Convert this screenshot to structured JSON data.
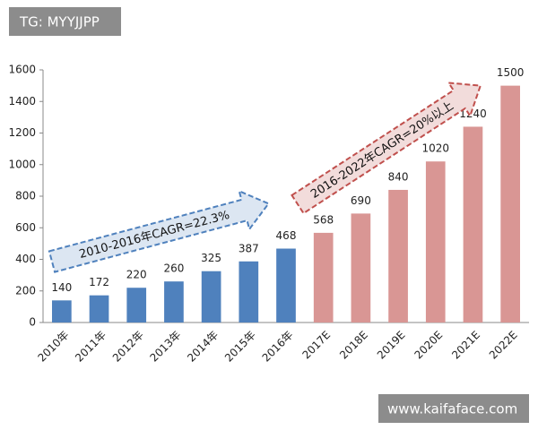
{
  "chart_data": {
    "type": "bar",
    "categories": [
      "2010年",
      "2011年",
      "2012年",
      "2013年",
      "2014年",
      "2015年",
      "2016年",
      "2017E",
      "2018E",
      "2019E",
      "2020E",
      "2021E",
      "2022E"
    ],
    "values": [
      140,
      172,
      220,
      260,
      325,
      387,
      468,
      568,
      690,
      840,
      1020,
      1240,
      1500
    ],
    "colors": [
      "#4f81bd",
      "#4f81bd",
      "#4f81bd",
      "#4f81bd",
      "#4f81bd",
      "#4f81bd",
      "#4f81bd",
      "#d99694",
      "#d99694",
      "#d99694",
      "#d99694",
      "#d99694",
      "#d99694"
    ],
    "ylim": [
      0,
      1600
    ],
    "yticks": [
      0,
      200,
      400,
      600,
      800,
      1000,
      1200,
      1400,
      1600
    ],
    "grid": false,
    "annotations": [
      "2010-2016年CAGR=22.3%",
      "2016-2022年CAGR=20%以上"
    ],
    "watermarks": [
      "TG: MYYJJPP",
      "www.kaifaface.com"
    ]
  }
}
